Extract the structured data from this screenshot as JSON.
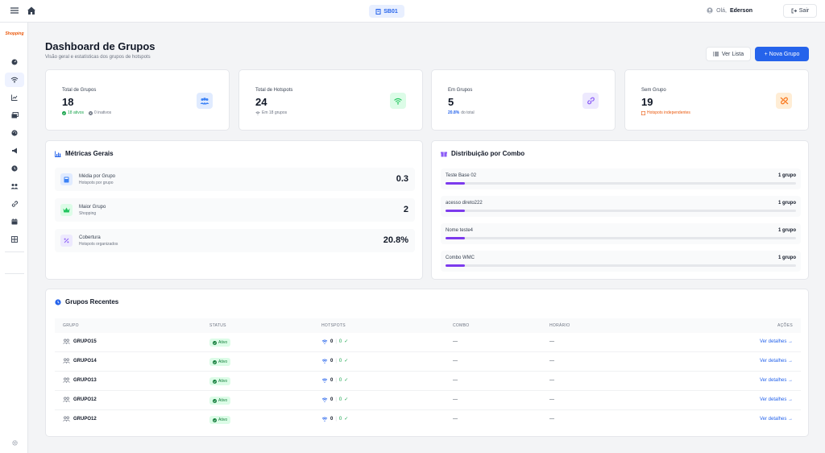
{
  "topbar": {
    "location_label": "SB01",
    "greeting": "Olá,",
    "user_name": "Ederson",
    "logout_label": "Sair"
  },
  "sidebar": {
    "logo_text": "Shopping",
    "items": [
      "dashboard-icon",
      "wifi-icon",
      "chart-icon",
      "gallery-icon",
      "palette-icon",
      "megaphone-icon",
      "clock-icon",
      "users-icon",
      "link-icon",
      "calendar-icon",
      "grid-icon"
    ]
  },
  "header": {
    "title": "Dashboard de Grupos",
    "subtitle": "Visão geral e estatísticas dos grupos de hotspots",
    "list_button": "Ver Lista",
    "new_button": "+ Nova Grupo"
  },
  "stats": [
    {
      "label": "Total de Grupos",
      "value": "18",
      "foot_a": "18 ativos",
      "foot_b": "0 inativos",
      "icon": "users-icon",
      "color": "#3b82f6",
      "bg": "#e0ebff"
    },
    {
      "label": "Total de Hotspots",
      "value": "24",
      "foot_a": "Em 18 grupos",
      "icon": "wifi-icon",
      "color": "#22c55e",
      "bg": "#dcfce7"
    },
    {
      "label": "Em Grupos",
      "value": "5",
      "foot_a": "20.8%",
      "foot_b": "do total",
      "icon": "link-icon",
      "color": "#8b5cf6",
      "bg": "#ede9fe"
    },
    {
      "label": "Sem Grupo",
      "value": "19",
      "foot_a": "Hotspots independentes",
      "icon": "unlink-icon",
      "color": "#f97316",
      "bg": "#ffedd5"
    }
  ],
  "metrics": {
    "title": "Métricas Gerais",
    "items": [
      {
        "label": "Média por Grupo",
        "sub": "Hotspots por grupo",
        "value": "0.3",
        "icon": "calculator-icon",
        "bg": "#e0ebff",
        "color": "#3b82f6"
      },
      {
        "label": "Maior Grupo",
        "sub": "Shopping",
        "value": "2",
        "icon": "crown-icon",
        "bg": "#dcfce7",
        "color": "#22c55e"
      },
      {
        "label": "Cobertura",
        "sub": "Hotspots organizados",
        "value": "20.8%",
        "icon": "percent-icon",
        "bg": "#ede9fe",
        "color": "#8b5cf6"
      }
    ]
  },
  "combos": {
    "title": "Distribuição por Combo",
    "items": [
      {
        "name": "Teste Base 02",
        "count": "1 grupo",
        "fraction": 0.055
      },
      {
        "name": "acesso direto222",
        "count": "1 grupo",
        "fraction": 0.055
      },
      {
        "name": "Nome teste4",
        "count": "1 grupo",
        "fraction": 0.055
      },
      {
        "name": "Combo WMC",
        "count": "1 grupo",
        "fraction": 0.055
      }
    ]
  },
  "recent": {
    "title": "Grupos Recentes",
    "columns": [
      "GRUPO",
      "STATUS",
      "HOTSPOTS",
      "COMBO",
      "HORÁRIO",
      "AÇÕES"
    ],
    "rows": [
      {
        "name": "GRUPO15",
        "status": "Ativo",
        "hs_total": "0",
        "hs_ok": "0",
        "combo": "—",
        "horario": "—",
        "action": "Ver detalhes →"
      },
      {
        "name": "GRUPO14",
        "status": "Ativo",
        "hs_total": "0",
        "hs_ok": "0",
        "combo": "—",
        "horario": "—",
        "action": "Ver detalhes →"
      },
      {
        "name": "GRUPO13",
        "status": "Ativo",
        "hs_total": "0",
        "hs_ok": "0",
        "combo": "—",
        "horario": "—",
        "action": "Ver detalhes →"
      },
      {
        "name": "GRUPO12",
        "status": "Ativo",
        "hs_total": "0",
        "hs_ok": "0",
        "combo": "—",
        "horario": "—",
        "action": "Ver detalhes →"
      },
      {
        "name": "GRUPO12",
        "status": "Ativo",
        "hs_total": "0",
        "hs_ok": "0",
        "combo": "—",
        "horario": "—",
        "action": "Ver detalhes →"
      }
    ]
  }
}
